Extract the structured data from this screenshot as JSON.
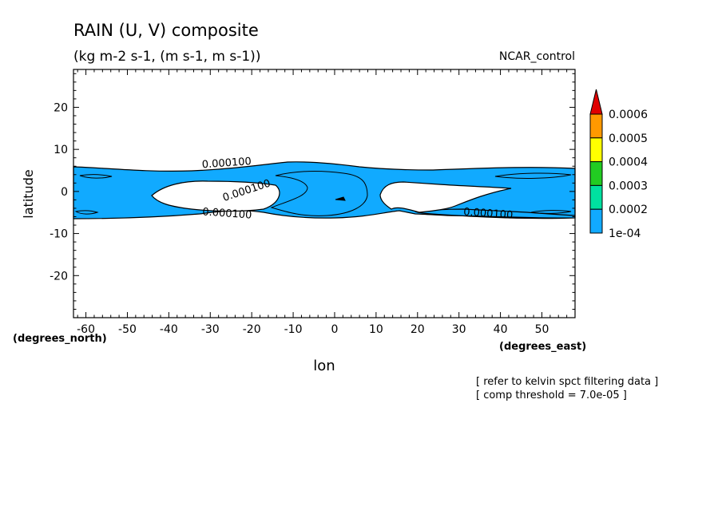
{
  "chart_data": {
    "type": "contour",
    "title": "RAIN (U, V) composite",
    "subtitle": "(kg m-2 s-1, (m s-1, m s-1))",
    "dataset_label": "NCAR_control",
    "xlabel": "lon",
    "ylabel": "latitude",
    "x_units": "(degrees_east)",
    "y_units": "(degrees_north)",
    "xlim": [
      -63,
      58
    ],
    "ylim": [
      -30,
      29
    ],
    "x_ticks": [
      -60,
      -50,
      -40,
      -30,
      -20,
      -10,
      0,
      10,
      20,
      30,
      40,
      50
    ],
    "x_tick_labels": [
      "-60",
      "-50",
      "-40",
      "-30",
      "-20",
      "-10",
      "0",
      "10",
      "20",
      "30",
      "40",
      "50"
    ],
    "y_ticks": [
      20,
      10,
      0,
      -10,
      -20
    ],
    "y_tick_labels": [
      "20",
      "10",
      "0",
      "-10",
      "-20"
    ],
    "colorbar": {
      "levels": [
        "0.0006",
        "0.0005",
        "0.0004",
        "0.0003",
        "0.0002",
        "1e-04"
      ],
      "colors": [
        "#e00000",
        "#ff9900",
        "#ffff00",
        "#22cc22",
        "#00e0a0",
        "#11aaff"
      ]
    },
    "contour_labels": [
      {
        "text": "0.000100",
        "lon": -26,
        "lat": 6
      },
      {
        "text": "0.000100",
        "lon": -21,
        "lat": -0.5
      },
      {
        "text": "0.000100",
        "lon": -26,
        "lat": -6
      },
      {
        "text": "0.000100",
        "lon": 37,
        "lat": -6
      }
    ],
    "notes": [
      "[ refer to kelvin spct filtering data ]",
      "[ comp threshold = 7.0e-05 ]"
    ]
  }
}
